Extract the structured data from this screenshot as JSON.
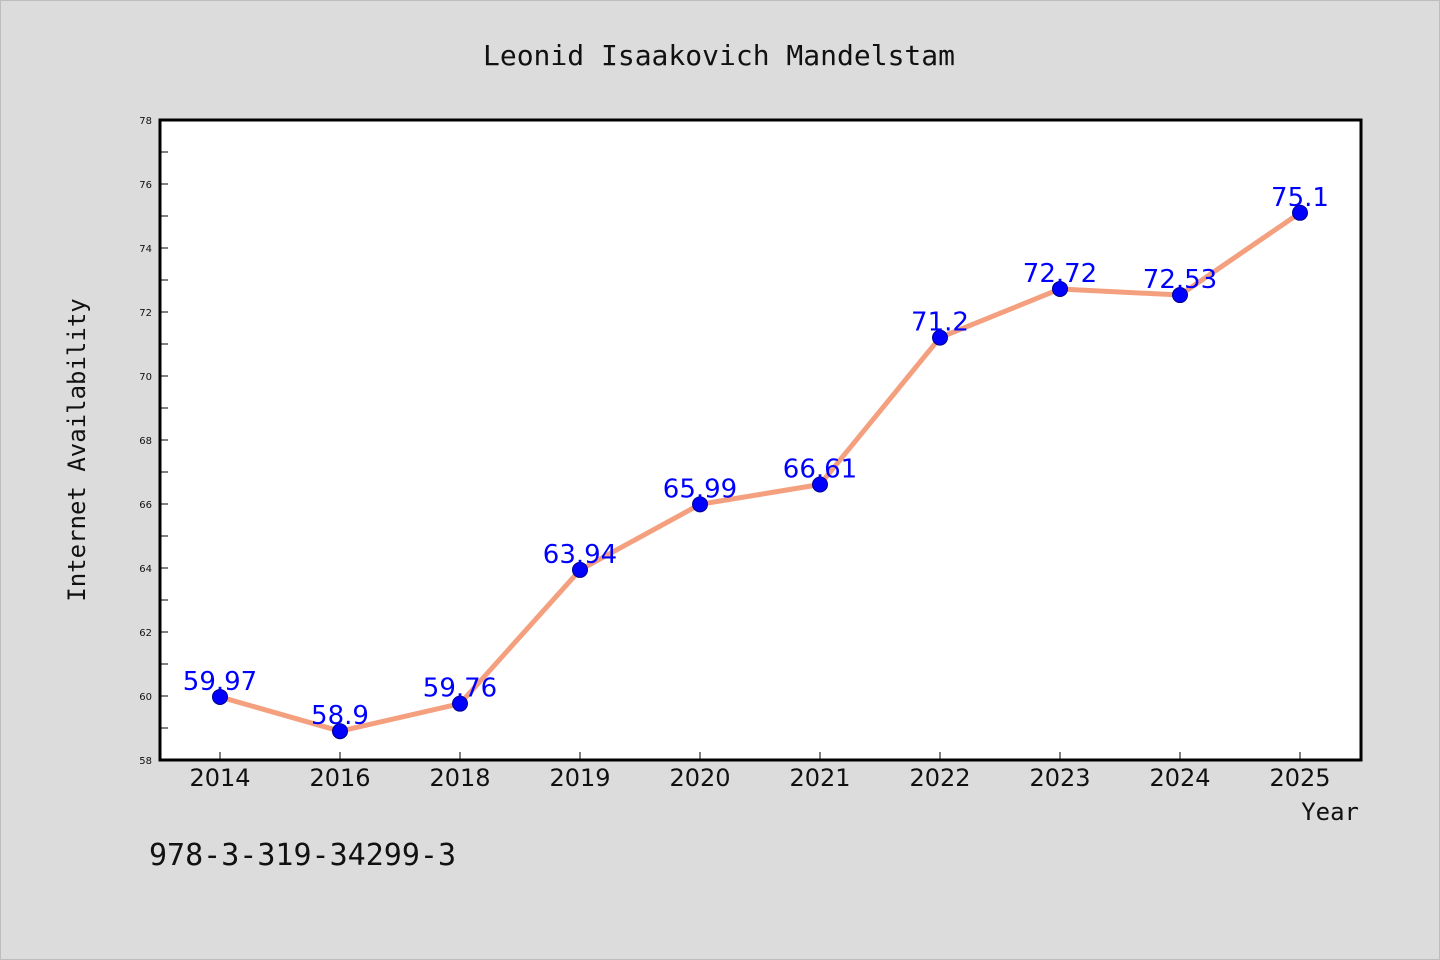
{
  "chart_data": {
    "type": "line",
    "title": "Leonid Isaakovich Mandelstam",
    "xlabel": "Year",
    "ylabel": "Internet Availability",
    "categories": [
      "2014",
      "2016",
      "2018",
      "2019",
      "2020",
      "2021",
      "2022",
      "2023",
      "2024",
      "2025"
    ],
    "values": [
      59.97,
      58.9,
      59.76,
      63.94,
      65.99,
      66.61,
      71.2,
      72.72,
      72.53,
      75.1
    ],
    "value_labels": [
      "59.97",
      "58.9",
      "59.76",
      "63.94",
      "65.99",
      "66.61",
      "71.2",
      "72.72",
      "72.53",
      "75.1"
    ],
    "ylim": [
      58,
      78
    ],
    "yticks": [
      "58",
      "60",
      "62",
      "64",
      "66",
      "68",
      "70",
      "72",
      "74",
      "76",
      "78"
    ],
    "grid": false,
    "legend": "none",
    "colors": {
      "line": "#f4a07e",
      "marker": "#0000ff",
      "label": "#0000ff",
      "background": "#dcdcdc",
      "plot_background": "#ffffff"
    }
  },
  "footer_text": "978-3-319-34299-3"
}
